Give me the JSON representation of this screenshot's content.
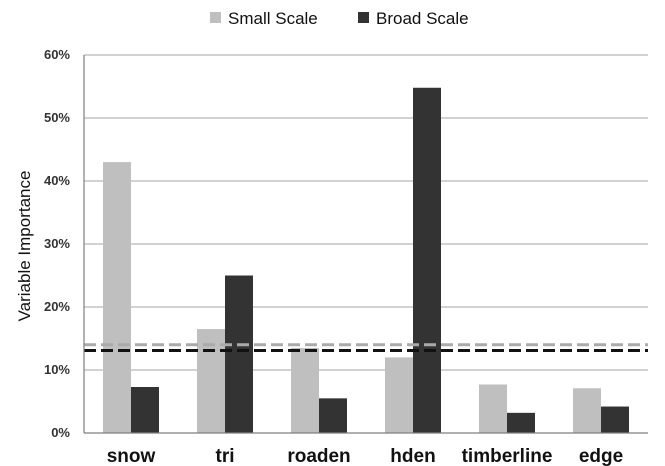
{
  "chart_data": {
    "type": "bar",
    "categories": [
      "snow",
      "tri",
      "roaden",
      "hden",
      "timberline",
      "edge"
    ],
    "series": [
      {
        "name": "Small Scale",
        "color": "#bfbfbf",
        "values": [
          43,
          16.5,
          13.5,
          12,
          7.7,
          7.1
        ]
      },
      {
        "name": "Broad Scale",
        "color": "#333333",
        "values": [
          7.3,
          25,
          5.5,
          54.8,
          3.2,
          4.2
        ]
      }
    ],
    "xlabel": "",
    "ylabel": "Variable Importance",
    "ylim": [
      0,
      60
    ],
    "yticks": [
      {
        "value": 0,
        "label": "0%"
      },
      {
        "value": 10,
        "label": "10%"
      },
      {
        "value": 20,
        "label": "20%"
      },
      {
        "value": 30,
        "label": "30%"
      },
      {
        "value": 40,
        "label": "40%"
      },
      {
        "value": 50,
        "label": "50%"
      },
      {
        "value": 60,
        "label": "60%"
      }
    ],
    "reference_lines": [
      {
        "series": "Small Scale",
        "value": 14,
        "color": "#aaaaaa",
        "style": "dashed"
      },
      {
        "series": "Broad Scale",
        "value": 13.1,
        "color": "#111111",
        "style": "dashed"
      }
    ],
    "grid": true,
    "legend_position": "top-center"
  }
}
